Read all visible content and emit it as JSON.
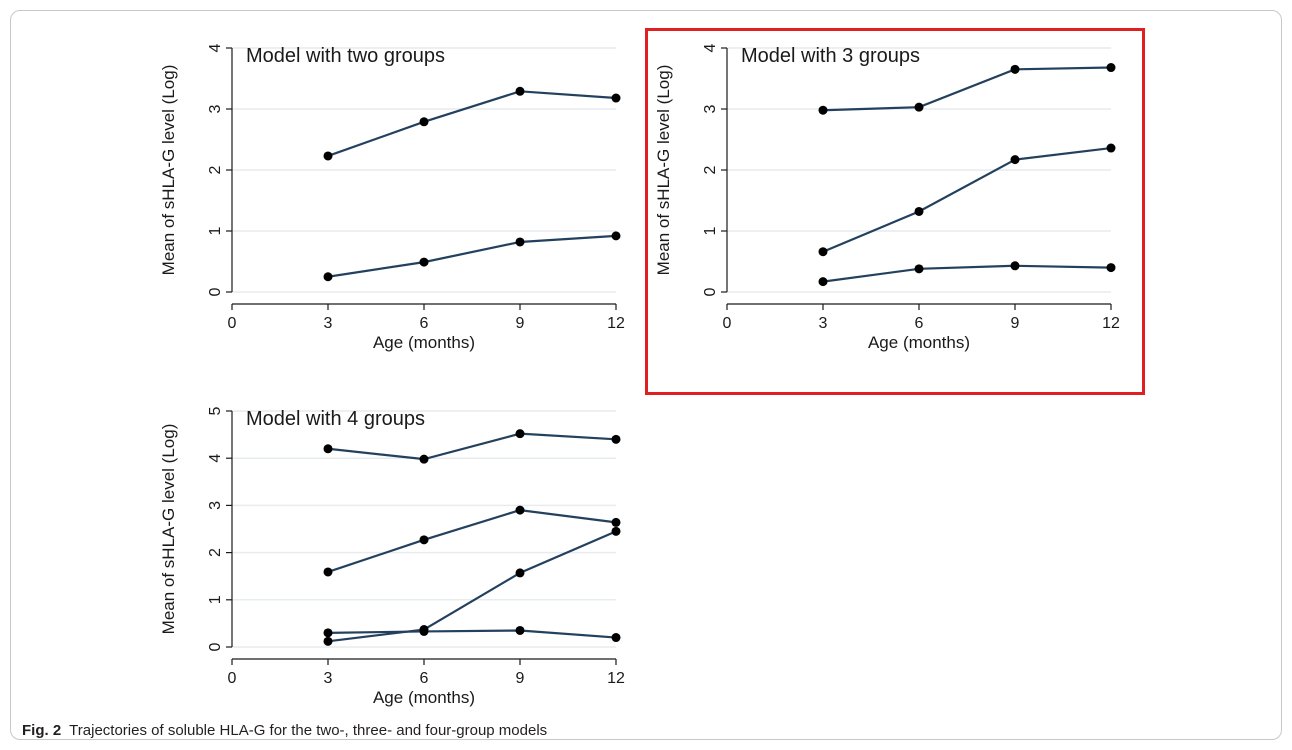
{
  "caption": {
    "label": "Fig. 2",
    "text": "Trajectories of soluble HLA-G for the two-, three- and four-group models"
  },
  "colors": {
    "line": "#23415e",
    "marker": "#000000",
    "grid": "#e6ecef",
    "axis": "#1a1a1a",
    "highlight_box": "#e02020",
    "frame": "#c8c8c8"
  },
  "chart_data": [
    {
      "type": "line",
      "title": "Model with two groups",
      "xlabel": "Age (months)",
      "ylabel": "Mean of sHLA-G level (Log)",
      "x_ticks": [
        0,
        3,
        6,
        9,
        12
      ],
      "y_ticks": [
        0,
        1,
        2,
        3,
        4
      ],
      "xlim": [
        0,
        12
      ],
      "ylim": [
        0,
        4
      ],
      "grid": true,
      "x": [
        3,
        6,
        9,
        12
      ],
      "series": [
        {
          "values": [
            2.23,
            2.79,
            3.29,
            3.18
          ]
        },
        {
          "values": [
            0.25,
            0.49,
            0.82,
            0.92
          ]
        }
      ]
    },
    {
      "type": "line",
      "title": "Model with 3 groups",
      "xlabel": "Age (months)",
      "ylabel": "Mean of sHLA-G level (Log)",
      "x_ticks": [
        0,
        3,
        6,
        9,
        12
      ],
      "y_ticks": [
        0,
        1,
        2,
        3,
        4
      ],
      "xlim": [
        0,
        12
      ],
      "ylim": [
        0,
        4
      ],
      "grid": true,
      "highlighted": true,
      "x": [
        3,
        6,
        9,
        12
      ],
      "series": [
        {
          "values": [
            2.98,
            3.03,
            3.65,
            3.68
          ]
        },
        {
          "values": [
            0.66,
            1.32,
            2.17,
            2.36
          ]
        },
        {
          "values": [
            0.17,
            0.38,
            0.43,
            0.4
          ]
        }
      ]
    },
    {
      "type": "line",
      "title": "Model with 4 groups",
      "xlabel": "Age (months)",
      "ylabel": "Mean of sHLA-G level (Log)",
      "x_ticks": [
        0,
        3,
        6,
        9,
        12
      ],
      "y_ticks": [
        0,
        1,
        2,
        3,
        4,
        5
      ],
      "xlim": [
        0,
        12
      ],
      "ylim": [
        0,
        5
      ],
      "grid": true,
      "x": [
        3,
        6,
        9,
        12
      ],
      "series": [
        {
          "values": [
            4.2,
            3.98,
            4.52,
            4.4
          ]
        },
        {
          "values": [
            1.59,
            2.27,
            2.9,
            2.64
          ]
        },
        {
          "values": [
            0.12,
            0.37,
            1.57,
            2.45
          ]
        },
        {
          "values": [
            0.3,
            0.33,
            0.35,
            0.2
          ]
        }
      ]
    }
  ]
}
